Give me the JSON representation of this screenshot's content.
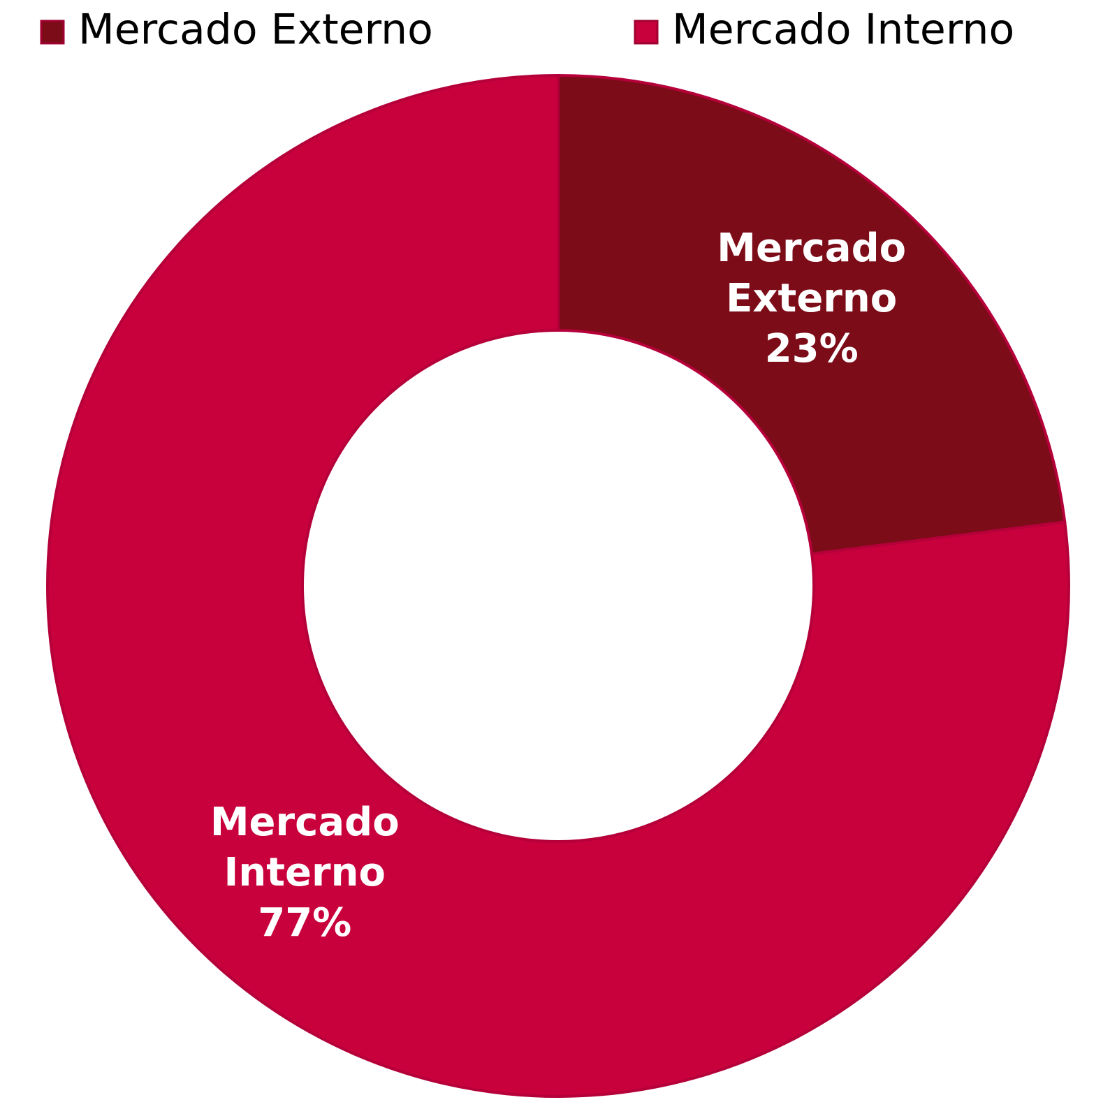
{
  "chart_data": {
    "type": "donut",
    "categories": [
      "Mercado Externo",
      "Mercado Interno"
    ],
    "values": [
      23,
      77
    ],
    "value_labels": [
      "23%",
      "77%"
    ],
    "colors": [
      "#7b0c18",
      "#c8003c"
    ],
    "legend": "top"
  }
}
